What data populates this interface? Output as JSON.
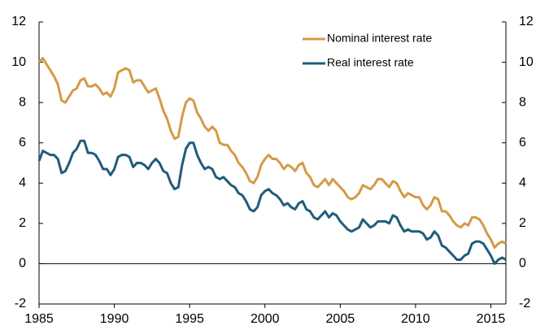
{
  "chart_data": {
    "type": "line",
    "x": [
      1985.0,
      1985.25,
      1985.5,
      1985.75,
      1986.0,
      1986.25,
      1986.5,
      1986.75,
      1987.0,
      1987.25,
      1987.5,
      1987.75,
      1988.0,
      1988.25,
      1988.5,
      1988.75,
      1989.0,
      1989.25,
      1989.5,
      1989.75,
      1990.0,
      1990.25,
      1990.5,
      1990.75,
      1991.0,
      1991.25,
      1991.5,
      1991.75,
      1992.0,
      1992.25,
      1992.5,
      1992.75,
      1993.0,
      1993.25,
      1993.5,
      1993.75,
      1994.0,
      1994.25,
      1994.5,
      1994.75,
      1995.0,
      1995.25,
      1995.5,
      1995.75,
      1996.0,
      1996.25,
      1996.5,
      1996.75,
      1997.0,
      1997.25,
      1997.5,
      1997.75,
      1998.0,
      1998.25,
      1998.5,
      1998.75,
      1999.0,
      1999.25,
      1999.5,
      1999.75,
      2000.0,
      2000.25,
      2000.5,
      2000.75,
      2001.0,
      2001.25,
      2001.5,
      2001.75,
      2002.0,
      2002.25,
      2002.5,
      2002.75,
      2003.0,
      2003.25,
      2003.5,
      2003.75,
      2004.0,
      2004.25,
      2004.5,
      2004.75,
      2005.0,
      2005.25,
      2005.5,
      2005.75,
      2006.0,
      2006.25,
      2006.5,
      2006.75,
      2007.0,
      2007.25,
      2007.5,
      2007.75,
      2008.0,
      2008.25,
      2008.5,
      2008.75,
      2009.0,
      2009.25,
      2009.5,
      2009.75,
      2010.0,
      2010.25,
      2010.5,
      2010.75,
      2011.0,
      2011.25,
      2011.5,
      2011.75,
      2012.0,
      2012.25,
      2012.5,
      2012.75,
      2013.0,
      2013.25,
      2013.5,
      2013.75,
      2014.0,
      2014.25,
      2014.5,
      2014.75,
      2015.0,
      2015.25,
      2015.5,
      2015.75,
      2016.0
    ],
    "series": [
      {
        "name": "Nominal interest rate",
        "color": "#d69a45",
        "values": [
          10.0,
          10.2,
          9.9,
          9.6,
          9.3,
          8.9,
          8.1,
          8.0,
          8.3,
          8.6,
          8.7,
          9.1,
          9.2,
          8.8,
          8.8,
          8.9,
          8.7,
          8.4,
          8.5,
          8.3,
          8.7,
          9.5,
          9.6,
          9.7,
          9.6,
          9.0,
          9.1,
          9.1,
          8.8,
          8.5,
          8.6,
          8.7,
          8.2,
          7.6,
          7.2,
          6.6,
          6.2,
          6.3,
          7.3,
          8.0,
          8.2,
          8.1,
          7.5,
          7.2,
          6.8,
          6.6,
          6.8,
          6.6,
          6.0,
          5.9,
          5.9,
          5.6,
          5.4,
          5.0,
          4.8,
          4.5,
          4.1,
          4.0,
          4.3,
          4.9,
          5.2,
          5.4,
          5.2,
          5.2,
          5.0,
          4.7,
          4.9,
          4.8,
          4.6,
          4.9,
          5.0,
          4.5,
          4.3,
          3.9,
          3.8,
          4.0,
          4.2,
          3.9,
          4.2,
          4.0,
          3.8,
          3.6,
          3.3,
          3.2,
          3.3,
          3.5,
          3.9,
          3.8,
          3.7,
          3.9,
          4.2,
          4.2,
          4.0,
          3.8,
          4.1,
          4.0,
          3.6,
          3.3,
          3.5,
          3.4,
          3.3,
          3.3,
          2.9,
          2.7,
          2.9,
          3.3,
          3.2,
          2.6,
          2.6,
          2.4,
          2.1,
          1.9,
          1.8,
          2.0,
          1.9,
          2.3,
          2.3,
          2.2,
          1.9,
          1.5,
          1.2,
          0.8,
          1.0,
          1.1,
          1.0
        ]
      },
      {
        "name": "Real interest rate",
        "color": "#1f5c7a",
        "values": [
          5.1,
          5.6,
          5.5,
          5.4,
          5.4,
          5.2,
          4.5,
          4.6,
          5.0,
          5.5,
          5.7,
          6.1,
          6.1,
          5.5,
          5.5,
          5.4,
          5.1,
          4.7,
          4.7,
          4.4,
          4.7,
          5.3,
          5.4,
          5.4,
          5.3,
          4.8,
          5.0,
          5.0,
          4.9,
          4.7,
          5.0,
          5.2,
          5.0,
          4.6,
          4.5,
          4.0,
          3.7,
          3.8,
          4.9,
          5.7,
          6.0,
          6.0,
          5.4,
          5.0,
          4.7,
          4.8,
          4.7,
          4.3,
          4.2,
          4.3,
          4.1,
          3.9,
          3.8,
          3.5,
          3.4,
          3.1,
          2.7,
          2.6,
          2.8,
          3.4,
          3.6,
          3.7,
          3.5,
          3.4,
          3.2,
          2.9,
          3.0,
          2.8,
          2.7,
          3.0,
          3.1,
          2.7,
          2.6,
          2.3,
          2.2,
          2.4,
          2.6,
          2.3,
          2.5,
          2.4,
          2.1,
          1.9,
          1.7,
          1.6,
          1.7,
          1.8,
          2.2,
          2.0,
          1.8,
          1.9,
          2.1,
          2.1,
          2.1,
          2.0,
          2.4,
          2.3,
          1.9,
          1.6,
          1.7,
          1.6,
          1.6,
          1.6,
          1.5,
          1.2,
          1.3,
          1.6,
          1.4,
          0.9,
          0.8,
          0.6,
          0.4,
          0.2,
          0.2,
          0.4,
          0.5,
          1.0,
          1.1,
          1.1,
          1.0,
          0.7,
          0.4,
          0.0,
          0.2,
          0.3,
          0.2
        ]
      }
    ],
    "xlim": [
      1985,
      2016
    ],
    "xticks": [
      1985,
      1990,
      1995,
      2000,
      2005,
      2010,
      2015
    ],
    "ylim": [
      -2,
      12
    ],
    "yticks": [
      -2,
      0,
      2,
      4,
      6,
      8,
      10,
      12
    ],
    "y2lim": [
      -2,
      12
    ],
    "y2ticks": [
      -2,
      0,
      2,
      4,
      6,
      8,
      10,
      12
    ],
    "legend": "upper right",
    "grid": false
  }
}
